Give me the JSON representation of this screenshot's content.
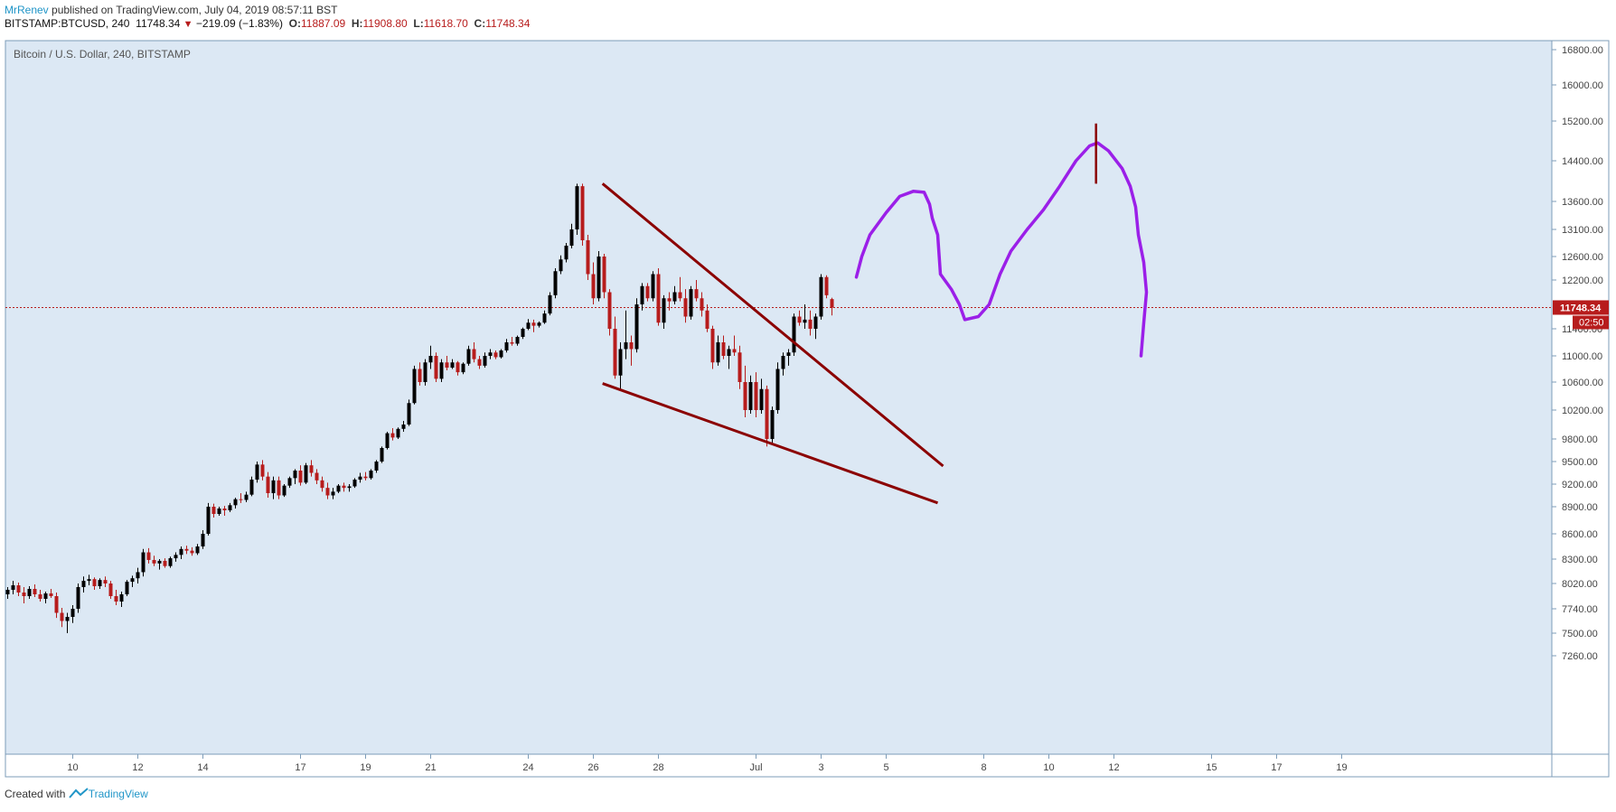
{
  "header": {
    "author": "MrRenev",
    "published": "published on TradingView.com, July 04, 2019 08:57:11 BST",
    "symbol": "BITSTAMP:BTCUSD, 240",
    "last": "11748.34",
    "change": "−219.09 (−1.83%)",
    "o_label": "O:",
    "o_value": "11887.09",
    "h_label": "H:",
    "h_value": "11908.80",
    "l_label": "L:",
    "l_value": "11618.70",
    "c_label": "C:",
    "c_value": "11748.34"
  },
  "footer": {
    "created_with": "Created with",
    "brand": "TradingView"
  },
  "colors": {
    "background": "#dce8f4",
    "up": "#000000",
    "down": "#b71c1c",
    "trendline": "#8b0000",
    "projection": "#9b1fe8",
    "price_line": "#b71c1c"
  },
  "chart_data": {
    "type": "candlestick",
    "title": "Bitcoin / U.S. Dollar, 240, BITSTAMP",
    "y_ticks": [
      "16800.00",
      "16000.00",
      "15200.00",
      "14400.00",
      "13600.00",
      "13100.00",
      "12600.00",
      "12200.00",
      "11400.00",
      "11000.00",
      "10600.00",
      "10200.00",
      "9800.00",
      "9500.00",
      "9200.00",
      "8900.00",
      "8600.00",
      "8300.00",
      "8020.00",
      "7740.00",
      "7500.00",
      "7260.00"
    ],
    "x_ticks": [
      {
        "label": "10",
        "i": 12
      },
      {
        "label": "12",
        "i": 24
      },
      {
        "label": "14",
        "i": 36
      },
      {
        "label": "17",
        "i": 54
      },
      {
        "label": "19",
        "i": 66
      },
      {
        "label": "21",
        "i": 78
      },
      {
        "label": "24",
        "i": 96
      },
      {
        "label": "26",
        "i": 108
      },
      {
        "label": "28",
        "i": 120
      },
      {
        "label": "Jul",
        "i": 138
      },
      {
        "label": "3",
        "i": 150
      },
      {
        "label": "5",
        "i": 162
      },
      {
        "label": "8",
        "i": 180
      },
      {
        "label": "10",
        "i": 192
      },
      {
        "label": "12",
        "i": 204
      },
      {
        "label": "15",
        "i": 222
      },
      {
        "label": "17",
        "i": 234
      },
      {
        "label": "19",
        "i": 246
      }
    ],
    "last_price": "11748.34",
    "countdown": "02:50",
    "candles": [
      [
        7900,
        7980,
        7850,
        7950
      ],
      [
        7950,
        8050,
        7900,
        8000
      ],
      [
        8000,
        8030,
        7880,
        7920
      ],
      [
        7920,
        7980,
        7800,
        7880
      ],
      [
        7880,
        7990,
        7850,
        7960
      ],
      [
        7960,
        8010,
        7870,
        7900
      ],
      [
        7900,
        7950,
        7820,
        7850
      ],
      [
        7850,
        7930,
        7800,
        7910
      ],
      [
        7910,
        7960,
        7860,
        7880
      ],
      [
        7880,
        7920,
        7650,
        7700
      ],
      [
        7700,
        7750,
        7560,
        7620
      ],
      [
        7620,
        7700,
        7500,
        7660
      ],
      [
        7660,
        7780,
        7600,
        7740
      ],
      [
        7740,
        8020,
        7700,
        7980
      ],
      [
        7980,
        8100,
        7920,
        8050
      ],
      [
        8050,
        8120,
        8000,
        8070
      ],
      [
        8070,
        8090,
        7950,
        7990
      ],
      [
        7990,
        8080,
        7960,
        8060
      ],
      [
        8060,
        8100,
        7980,
        8020
      ],
      [
        8020,
        8050,
        7850,
        7880
      ],
      [
        7880,
        7950,
        7780,
        7820
      ],
      [
        7820,
        7930,
        7760,
        7900
      ],
      [
        7900,
        8060,
        7880,
        8040
      ],
      [
        8040,
        8110,
        7980,
        8080
      ],
      [
        8080,
        8200,
        8020,
        8150
      ],
      [
        8150,
        8420,
        8100,
        8380
      ],
      [
        8380,
        8430,
        8250,
        8290
      ],
      [
        8290,
        8340,
        8220,
        8250
      ],
      [
        8250,
        8300,
        8180,
        8280
      ],
      [
        8280,
        8310,
        8200,
        8220
      ],
      [
        8220,
        8330,
        8200,
        8310
      ],
      [
        8310,
        8380,
        8270,
        8350
      ],
      [
        8350,
        8450,
        8300,
        8420
      ],
      [
        8420,
        8460,
        8360,
        8400
      ],
      [
        8400,
        8440,
        8340,
        8370
      ],
      [
        8370,
        8480,
        8350,
        8450
      ],
      [
        8450,
        8640,
        8420,
        8600
      ],
      [
        8600,
        8950,
        8580,
        8900
      ],
      [
        8900,
        8940,
        8780,
        8820
      ],
      [
        8820,
        8900,
        8800,
        8880
      ],
      [
        8880,
        8910,
        8800,
        8860
      ],
      [
        8860,
        8950,
        8840,
        8920
      ],
      [
        8920,
        9020,
        8880,
        9000
      ],
      [
        9000,
        9080,
        8950,
        8990
      ],
      [
        8990,
        9100,
        8960,
        9060
      ],
      [
        9060,
        9300,
        9040,
        9260
      ],
      [
        9260,
        9500,
        9220,
        9460
      ],
      [
        9460,
        9520,
        9250,
        9300
      ],
      [
        9300,
        9360,
        9020,
        9080
      ],
      [
        9080,
        9300,
        9000,
        9250
      ],
      [
        9250,
        9300,
        9000,
        9050
      ],
      [
        9050,
        9200,
        9030,
        9180
      ],
      [
        9180,
        9300,
        9150,
        9280
      ],
      [
        9280,
        9400,
        9200,
        9380
      ],
      [
        9380,
        9450,
        9180,
        9220
      ],
      [
        9220,
        9480,
        9200,
        9450
      ],
      [
        9450,
        9520,
        9300,
        9350
      ],
      [
        9350,
        9400,
        9200,
        9250
      ],
      [
        9250,
        9300,
        9100,
        9150
      ],
      [
        9150,
        9220,
        9000,
        9050
      ],
      [
        9050,
        9150,
        9000,
        9100
      ],
      [
        9100,
        9200,
        9080,
        9180
      ],
      [
        9180,
        9220,
        9100,
        9150
      ],
      [
        9150,
        9200,
        9100,
        9170
      ],
      [
        9170,
        9280,
        9150,
        9260
      ],
      [
        9260,
        9350,
        9220,
        9300
      ],
      [
        9300,
        9360,
        9250,
        9280
      ],
      [
        9280,
        9400,
        9260,
        9380
      ],
      [
        9380,
        9520,
        9350,
        9500
      ],
      [
        9500,
        9700,
        9480,
        9680
      ],
      [
        9680,
        9900,
        9660,
        9880
      ],
      [
        9880,
        9950,
        9780,
        9820
      ],
      [
        9820,
        9960,
        9800,
        9940
      ],
      [
        9940,
        10050,
        9900,
        10000
      ],
      [
        10000,
        10350,
        9980,
        10300
      ],
      [
        10300,
        10850,
        10280,
        10800
      ],
      [
        10800,
        10900,
        10550,
        10600
      ],
      [
        10600,
        10950,
        10550,
        10900
      ],
      [
        10900,
        11150,
        10800,
        11000
      ],
      [
        11000,
        11050,
        10600,
        10650
      ],
      [
        10650,
        10950,
        10600,
        10900
      ],
      [
        10900,
        11000,
        10780,
        10820
      ],
      [
        10820,
        10950,
        10800,
        10900
      ],
      [
        10900,
        10920,
        10700,
        10750
      ],
      [
        10750,
        10900,
        10720,
        10880
      ],
      [
        10880,
        11150,
        10850,
        11100
      ],
      [
        11100,
        11200,
        10900,
        10950
      ],
      [
        10950,
        11000,
        10800,
        10850
      ],
      [
        10850,
        11050,
        10820,
        11000
      ],
      [
        11000,
        11100,
        10950,
        11050
      ],
      [
        11050,
        11080,
        10950,
        10980
      ],
      [
        10980,
        11100,
        10960,
        11080
      ],
      [
        11080,
        11250,
        11050,
        11200
      ],
      [
        11200,
        11280,
        11150,
        11180
      ],
      [
        11180,
        11300,
        11150,
        11280
      ],
      [
        11280,
        11420,
        11250,
        11400
      ],
      [
        11400,
        11560,
        11380,
        11500
      ],
      [
        11500,
        11550,
        11350,
        11450
      ],
      [
        11450,
        11520,
        11420,
        11500
      ],
      [
        11500,
        11700,
        11480,
        11650
      ],
      [
        11650,
        12000,
        11620,
        11950
      ],
      [
        11950,
        12400,
        11900,
        12350
      ],
      [
        12350,
        12620,
        12300,
        12550
      ],
      [
        12550,
        12850,
        12500,
        12800
      ],
      [
        12800,
        13200,
        12750,
        13100
      ],
      [
        13100,
        13950,
        13000,
        13900
      ],
      [
        13900,
        13950,
        12800,
        12900
      ],
      [
        12900,
        13000,
        12200,
        12300
      ],
      [
        12300,
        12500,
        11800,
        11900
      ],
      [
        11900,
        12700,
        11850,
        12600
      ],
      [
        12600,
        12650,
        11900,
        12000
      ],
      [
        12000,
        12050,
        11300,
        11400
      ],
      [
        11400,
        11600,
        10650,
        10700
      ],
      [
        10700,
        11200,
        10500,
        11100
      ],
      [
        11100,
        11700,
        10950,
        11200
      ],
      [
        11200,
        11300,
        10850,
        11100
      ],
      [
        11100,
        11900,
        11050,
        11800
      ],
      [
        11800,
        12150,
        11700,
        12100
      ],
      [
        12100,
        12150,
        11850,
        11900
      ],
      [
        11900,
        12350,
        11850,
        12300
      ],
      [
        12300,
        12400,
        11450,
        11500
      ],
      [
        11500,
        11950,
        11400,
        11900
      ],
      [
        11900,
        12000,
        11700,
        11850
      ],
      [
        11850,
        12100,
        11800,
        12000
      ],
      [
        12000,
        12250,
        11850,
        11900
      ],
      [
        11900,
        12050,
        11500,
        11600
      ],
      [
        11600,
        12100,
        11550,
        12050
      ],
      [
        12050,
        12200,
        11850,
        11900
      ],
      [
        11900,
        12000,
        11600,
        11700
      ],
      [
        11700,
        11800,
        11350,
        11400
      ],
      [
        11400,
        11450,
        10800,
        10900
      ],
      [
        10900,
        11300,
        10850,
        11200
      ],
      [
        11200,
        11300,
        10950,
        11000
      ],
      [
        11000,
        11150,
        10800,
        11100
      ],
      [
        11100,
        11300,
        11000,
        11050
      ],
      [
        11050,
        11150,
        10500,
        10600
      ],
      [
        10600,
        10850,
        10100,
        10200
      ],
      [
        10200,
        10700,
        10150,
        10600
      ],
      [
        10600,
        10750,
        10100,
        10200
      ],
      [
        10200,
        10650,
        10150,
        10500
      ],
      [
        10500,
        10550,
        9700,
        9800
      ],
      [
        9800,
        10250,
        9750,
        10200
      ],
      [
        10200,
        10900,
        10150,
        10800
      ],
      [
        10800,
        11050,
        10700,
        11000
      ],
      [
        11000,
        11100,
        10850,
        11050
      ],
      [
        11050,
        11650,
        11000,
        11600
      ],
      [
        11600,
        11700,
        11450,
        11500
      ],
      [
        11500,
        11800,
        11400,
        11550
      ],
      [
        11550,
        11700,
        11300,
        11400
      ],
      [
        11400,
        11650,
        11250,
        11600
      ],
      [
        11600,
        12300,
        11550,
        12250
      ],
      [
        12250,
        12280,
        11900,
        11950
      ],
      [
        11887,
        11909,
        11619,
        11748
      ]
    ]
  }
}
